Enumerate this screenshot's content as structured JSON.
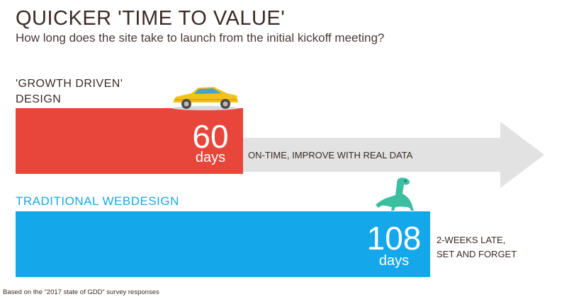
{
  "title": "QUICKER 'TIME TO VALUE'",
  "subtitle": "How long does the site take to launch from the initial kickoff meeting?",
  "chart_data": {
    "type": "bar",
    "orientation": "horizontal",
    "categories": [
      "'GROWTH DRIVEN' DESIGN",
      "TRADITIONAL WEBDESIGN"
    ],
    "values": [
      60,
      108
    ],
    "unit": "days",
    "series_colors": [
      "#e8463a",
      "#14a8ea"
    ],
    "annotations": [
      "ON-TIME, IMPROVE WITH REAL DATA",
      "2-WEEKS LATE, SET AND FORGET"
    ]
  },
  "gdd": {
    "label_line1": "'GROWTH DRIVEN'",
    "label_line2": "DESIGN",
    "value": "60",
    "unit": "days",
    "note": "ON-TIME, IMPROVE WITH REAL DATA",
    "icon": "sports-car-icon"
  },
  "trad": {
    "label": "TRADITIONAL WEBDESIGN",
    "value": "108",
    "unit": "days",
    "note_line1": "2-WEEKS LATE,",
    "note_line2": "SET AND FORGET",
    "icon": "dinosaur-icon"
  },
  "source": "Based on the “2017 state of GDD” survey responses",
  "colors": {
    "gdd": "#e8463a",
    "trad": "#14a8ea",
    "arrow": "#e2e2e2",
    "dino": "#3cbfa0",
    "car": "#f2c21b"
  }
}
